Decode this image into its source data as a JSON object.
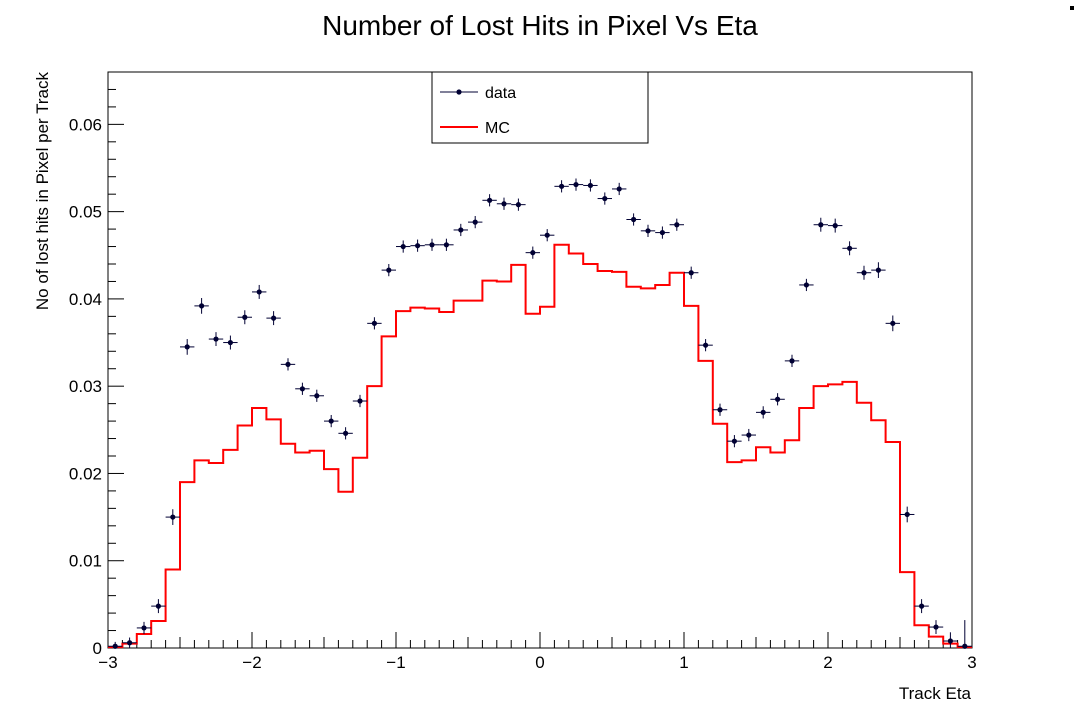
{
  "chart_data": {
    "type": "line",
    "title": "Number of Lost Hits in Pixel Vs Eta",
    "xlabel": "Track Eta",
    "ylabel": "No of lost hits in Pixel per Track",
    "xlim": [
      -3,
      3
    ],
    "ylim": [
      0,
      0.066
    ],
    "x_ticks": [
      -3,
      -2,
      -1,
      0,
      1,
      2,
      3
    ],
    "x_tick_labels": [
      "−3",
      "−2",
      "−1",
      "0",
      "1",
      "2",
      "3"
    ],
    "y_ticks": [
      0,
      0.01,
      0.02,
      0.03,
      0.04,
      0.05,
      0.06
    ],
    "y_tick_labels": [
      "0",
      "0.01",
      "0.02",
      "0.03",
      "0.04",
      "0.05",
      "0.06"
    ],
    "grid": false,
    "legend_position": "top-center",
    "bin_width": 0.1,
    "series": [
      {
        "name": "data",
        "style": "markers-with-error-bars",
        "color": "#000033",
        "x": [
          -2.95,
          -2.85,
          -2.75,
          -2.65,
          -2.55,
          -2.45,
          -2.35,
          -2.25,
          -2.15,
          -2.05,
          -1.95,
          -1.85,
          -1.75,
          -1.65,
          -1.55,
          -1.45,
          -1.35,
          -1.25,
          -1.15,
          -1.05,
          -0.95,
          -0.85,
          -0.75,
          -0.65,
          -0.55,
          -0.45,
          -0.35,
          -0.25,
          -0.15,
          -0.05,
          0.05,
          0.15,
          0.25,
          0.35,
          0.45,
          0.55,
          0.65,
          0.75,
          0.85,
          0.95,
          1.05,
          1.15,
          1.25,
          1.35,
          1.45,
          1.55,
          1.65,
          1.75,
          1.85,
          1.95,
          2.05,
          2.15,
          2.25,
          2.35,
          2.45,
          2.55,
          2.65,
          2.75,
          2.85,
          2.95
        ],
        "y": [
          0.0002,
          0.0006,
          0.0023,
          0.0048,
          0.015,
          0.0345,
          0.0392,
          0.0354,
          0.035,
          0.0379,
          0.0408,
          0.0378,
          0.0325,
          0.0297,
          0.0289,
          0.026,
          0.0246,
          0.0283,
          0.0372,
          0.0433,
          0.046,
          0.0461,
          0.0462,
          0.0462,
          0.0479,
          0.0488,
          0.0513,
          0.0509,
          0.0508,
          0.0453,
          0.0473,
          0.0529,
          0.0531,
          0.053,
          0.0515,
          0.0526,
          0.0491,
          0.0478,
          0.0476,
          0.0485,
          0.043,
          0.0347,
          0.0273,
          0.0237,
          0.0244,
          0.027,
          0.0285,
          0.0329,
          0.0416,
          0.0485,
          0.0484,
          0.0458,
          0.043,
          0.0433,
          0.0372,
          0.0153,
          0.0048,
          0.0024,
          0.0008,
          0.0002
        ],
        "y_err": [
          0.0005,
          0.0006,
          0.0007,
          0.0008,
          0.0009,
          0.0009,
          0.0009,
          0.0008,
          0.0008,
          0.0008,
          0.0008,
          0.0008,
          0.0007,
          0.0007,
          0.0007,
          0.0007,
          0.0007,
          0.0007,
          0.0007,
          0.0007,
          0.0007,
          0.0007,
          0.0007,
          0.0007,
          0.0007,
          0.0007,
          0.0007,
          0.0007,
          0.0007,
          0.0007,
          0.0007,
          0.0007,
          0.0007,
          0.0007,
          0.0007,
          0.0007,
          0.0007,
          0.0007,
          0.0007,
          0.0007,
          0.0007,
          0.0007,
          0.0007,
          0.0007,
          0.0007,
          0.0007,
          0.0007,
          0.0007,
          0.0007,
          0.0008,
          0.0008,
          0.0008,
          0.0008,
          0.0009,
          0.0009,
          0.0009,
          0.0008,
          0.0008,
          0.001,
          0.003
        ]
      },
      {
        "name": "MC",
        "style": "step-histogram",
        "color": "#ff0000",
        "bin_edges": [
          -3.0,
          -2.9,
          -2.8,
          -2.7,
          -2.6,
          -2.5,
          -2.4,
          -2.3,
          -2.2,
          -2.1,
          -2.0,
          -1.9,
          -1.8,
          -1.7,
          -1.6,
          -1.5,
          -1.4,
          -1.3,
          -1.2,
          -1.1,
          -1.0,
          -0.9,
          -0.8,
          -0.7,
          -0.6,
          -0.5,
          -0.4,
          -0.3,
          -0.2,
          -0.1,
          0.0,
          0.1,
          0.2,
          0.3,
          0.4,
          0.5,
          0.6,
          0.7,
          0.8,
          0.9,
          1.0,
          1.1,
          1.2,
          1.3,
          1.4,
          1.5,
          1.6,
          1.7,
          1.8,
          1.9,
          2.0,
          2.1,
          2.2,
          2.3,
          2.4,
          2.5,
          2.6,
          2.7,
          2.8,
          2.9,
          3.0
        ],
        "values": [
          0.0001,
          0.0005,
          0.0016,
          0.0031,
          0.009,
          0.019,
          0.0215,
          0.0212,
          0.0227,
          0.0255,
          0.0275,
          0.0262,
          0.0234,
          0.0224,
          0.0226,
          0.0205,
          0.0179,
          0.0218,
          0.03,
          0.0357,
          0.0386,
          0.039,
          0.0389,
          0.0385,
          0.0398,
          0.0398,
          0.0421,
          0.042,
          0.0439,
          0.0383,
          0.0391,
          0.0462,
          0.0452,
          0.044,
          0.0432,
          0.0431,
          0.0414,
          0.0412,
          0.0416,
          0.043,
          0.0392,
          0.0329,
          0.0257,
          0.0213,
          0.0215,
          0.023,
          0.0224,
          0.0238,
          0.0275,
          0.03,
          0.0302,
          0.0305,
          0.0281,
          0.0261,
          0.0236,
          0.0087,
          0.0026,
          0.0013,
          0.0005,
          0.0001
        ]
      }
    ]
  }
}
